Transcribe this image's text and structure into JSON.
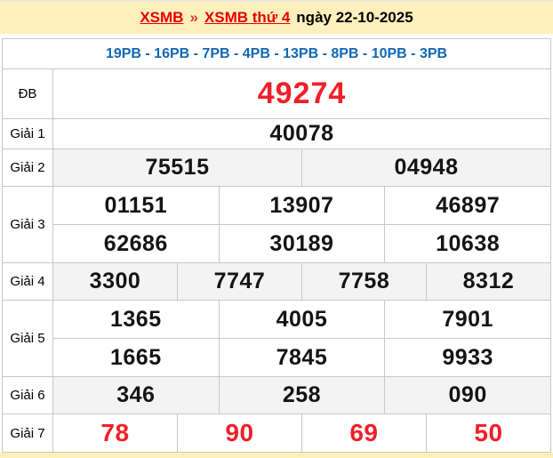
{
  "page_title": {
    "link_xsmb": "XSMB",
    "separator": "»",
    "link_day": "XSMB thứ 4",
    "date": "ngày 22-10-2025"
  },
  "loto_summary": "19PB - 16PB - 7PB - 4PB - 13PB - 8PB - 10PB - 3PB",
  "results": {
    "rows": [
      {
        "id": "db",
        "label": "ĐB",
        "groups": [
          [
            "49274"
          ]
        ]
      },
      {
        "id": "g1",
        "label": "Giải 1",
        "groups": [
          [
            "40078"
          ]
        ]
      },
      {
        "id": "g2",
        "label": "Giải 2",
        "groups": [
          [
            "75515",
            "04948"
          ]
        ]
      },
      {
        "id": "g3",
        "label": "Giải 3",
        "groups": [
          [
            "01151",
            "13907",
            "46897"
          ],
          [
            "62686",
            "30189",
            "10638"
          ]
        ]
      },
      {
        "id": "g4",
        "label": "Giải 4",
        "groups": [
          [
            "3300",
            "7747",
            "7758",
            "8312"
          ]
        ]
      },
      {
        "id": "g5",
        "label": "Giải 5",
        "groups": [
          [
            "1365",
            "4005",
            "7901"
          ],
          [
            "1665",
            "7845",
            "9933"
          ]
        ]
      },
      {
        "id": "g6",
        "label": "Giải 6",
        "groups": [
          [
            "346",
            "258",
            "090"
          ]
        ]
      },
      {
        "id": "g7",
        "label": "Giải 7",
        "groups": [
          [
            "78",
            "90",
            "69",
            "50"
          ]
        ]
      }
    ]
  },
  "colors": {
    "banner_yellow": "#fdf0bc",
    "number_red": "#f11f28",
    "link_red": "#e60000",
    "summary_blue": "#1068b3",
    "shaded_row": "#f3f3f3",
    "border_gray": "#c8c8c8"
  }
}
